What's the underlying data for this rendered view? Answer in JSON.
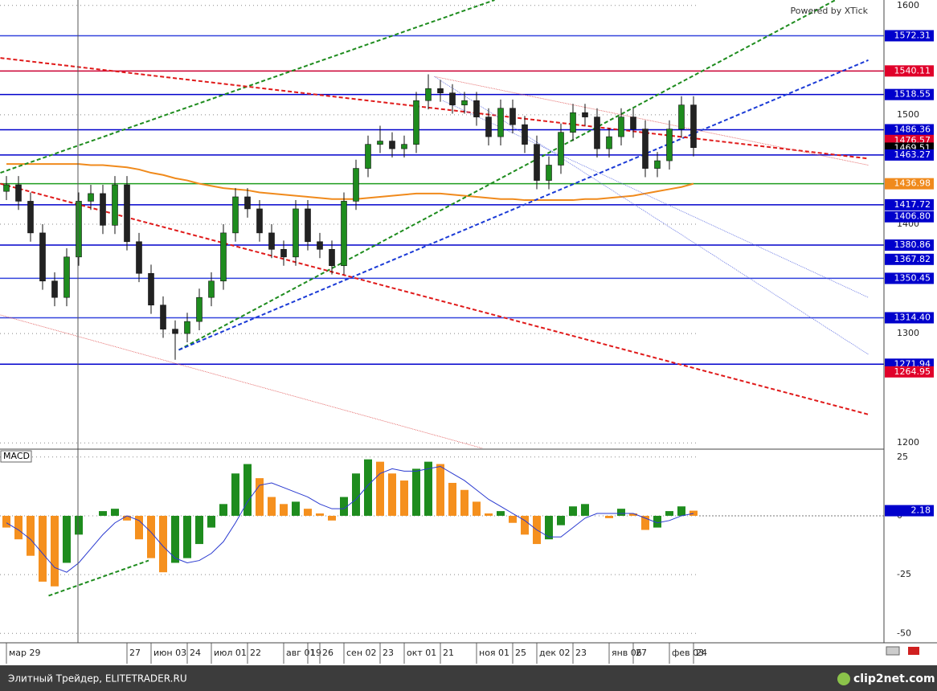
{
  "chart_data": [
    {
      "type": "candlestick",
      "annotation": "Powered by XTick",
      "categories": [
        "мар 29",
        null,
        null,
        null,
        null,
        null,
        null,
        null,
        null,
        null,
        "27",
        null,
        "июн 03",
        null,
        null,
        "24",
        null,
        "июл 01",
        null,
        null,
        "22",
        null,
        null,
        "авг 01",
        null,
        "19",
        "26",
        null,
        "сен 02",
        null,
        null,
        "23",
        null,
        "окт 01",
        null,
        null,
        "21",
        null,
        null,
        "ноя 01",
        null,
        null,
        "25",
        null,
        "дек 02",
        null,
        null,
        "23",
        null,
        null,
        "янв 06",
        null,
        "27",
        null,
        null,
        "фев 03",
        null,
        "24"
      ],
      "open": [
        1430,
        1436,
        1421,
        1392,
        1348,
        1333,
        1370,
        1421,
        1428,
        1399,
        1436,
        1384,
        1355,
        1326,
        1304,
        1300,
        1311,
        1333,
        1348,
        1392,
        1425,
        1414,
        1392,
        1377,
        1370,
        1414,
        1384,
        1377,
        1362,
        1421,
        1451,
        1473,
        1476,
        1469,
        1473,
        1513,
        1524,
        1520,
        1509,
        1513,
        1498,
        1480,
        1506,
        1491,
        1473,
        1440,
        1454,
        1484,
        1502,
        1498,
        1469,
        1480,
        1498,
        1487,
        1451,
        1458,
        1487,
        1509
      ],
      "high": [
        1444,
        1444,
        1429,
        1400,
        1356,
        1378,
        1429,
        1436,
        1436,
        1444,
        1444,
        1392,
        1363,
        1334,
        1312,
        1319,
        1341,
        1356,
        1400,
        1433,
        1433,
        1422,
        1400,
        1385,
        1422,
        1422,
        1392,
        1385,
        1429,
        1459,
        1481,
        1490,
        1484,
        1481,
        1521,
        1537,
        1532,
        1528,
        1521,
        1521,
        1506,
        1514,
        1514,
        1499,
        1481,
        1462,
        1492,
        1510,
        1510,
        1506,
        1488,
        1506,
        1506,
        1495,
        1466,
        1495,
        1517,
        1517
      ],
      "low": [
        1422,
        1413,
        1384,
        1340,
        1325,
        1325,
        1362,
        1413,
        1391,
        1391,
        1376,
        1347,
        1318,
        1296,
        1276,
        1292,
        1303,
        1325,
        1340,
        1384,
        1406,
        1384,
        1369,
        1362,
        1362,
        1376,
        1369,
        1354,
        1354,
        1413,
        1443,
        1465,
        1461,
        1461,
        1465,
        1505,
        1512,
        1501,
        1501,
        1490,
        1472,
        1472,
        1483,
        1465,
        1432,
        1432,
        1446,
        1476,
        1490,
        1461,
        1461,
        1472,
        1479,
        1443,
        1443,
        1450,
        1479,
        1462
      ],
      "close": [
        1436,
        1421,
        1392,
        1348,
        1333,
        1370,
        1421,
        1428,
        1399,
        1436,
        1384,
        1355,
        1326,
        1304,
        1300,
        1311,
        1333,
        1348,
        1392,
        1425,
        1414,
        1392,
        1377,
        1370,
        1414,
        1384,
        1377,
        1362,
        1421,
        1451,
        1473,
        1476,
        1469,
        1473,
        1513,
        1524,
        1520,
        1509,
        1513,
        1498,
        1480,
        1506,
        1491,
        1473,
        1440,
        1454,
        1484,
        1502,
        1498,
        1469,
        1480,
        1498,
        1487,
        1451,
        1458,
        1487,
        1509,
        1470
      ],
      "up_color": "#1e8c1e",
      "down_color": "#222222",
      "moving_average": {
        "color": "#f08a1c",
        "values": [
          1455,
          1455,
          1455,
          1455,
          1455,
          1455,
          1455,
          1454,
          1454,
          1453,
          1452,
          1450,
          1447,
          1445,
          1442,
          1440,
          1437,
          1435,
          1433,
          1432,
          1431,
          1429,
          1428,
          1427,
          1426,
          1425,
          1424,
          1423,
          1423,
          1423,
          1424,
          1425,
          1426,
          1427,
          1428,
          1428,
          1428,
          1427,
          1426,
          1425,
          1424,
          1423,
          1423,
          1422,
          1422,
          1422,
          1422,
          1422,
          1423,
          1423,
          1424,
          1425,
          1426,
          1428,
          1430,
          1432,
          1434,
          1437
        ]
      },
      "levels": [
        {
          "value": 1572.31,
          "label": "1572.31",
          "color": "#0000cc",
          "line_color": "#3344dd"
        },
        {
          "value": 1540.11,
          "label": "1540.11",
          "color": "#e0002a",
          "line_color": "#cc0033"
        },
        {
          "value": 1518.55,
          "label": "1518.55",
          "color": "#0000cc",
          "line_color": "#0000cc"
        },
        {
          "value": 1486.36,
          "label": "1486.36",
          "color": "#0000cc",
          "line_color": "#0000cc"
        },
        {
          "value": 1476.57,
          "label": "1476.57",
          "color": "#e0002a"
        },
        {
          "value": 1469.51,
          "label": "1469.51",
          "color": "#000000"
        },
        {
          "value": 1463.27,
          "label": "1463.27",
          "color": "#0000cc",
          "line_color": "#0000cc"
        },
        {
          "value": 1436.98,
          "label": "1436.98",
          "color": "#f08a1c",
          "line_color": "#1e9c1e"
        },
        {
          "value": 1417.72,
          "label": "1417.72",
          "color": "#0000cc",
          "line_color": "#0000cc"
        },
        {
          "value": 1406.8,
          "label": "1406.80",
          "color": "#0000cc"
        },
        {
          "value": 1380.86,
          "label": "1380.86",
          "color": "#0000cc",
          "line_color": "#0000cc"
        },
        {
          "value": 1367.82,
          "label": "1367.82",
          "color": "#0000cc"
        },
        {
          "value": 1350.45,
          "label": "1350.45",
          "color": "#0000cc",
          "line_color": "#3344dd"
        },
        {
          "value": 1314.4,
          "label": "1314.40",
          "color": "#0000cc",
          "line_color": "#3344dd"
        },
        {
          "value": 1271.94,
          "label": "1271.94",
          "color": "#0000cc",
          "line_color": "#0000cc"
        },
        {
          "value": 1264.95,
          "label": "1264.95",
          "color": "#e0002a"
        }
      ],
      "trendlines": [
        {
          "from": [
            -0.5,
            1447
          ],
          "to": [
            40.5,
            1605
          ],
          "color": "#1e8c1e",
          "dash": true
        },
        {
          "from": [
            14.3,
            1285
          ],
          "to": [
            71.5,
            1621
          ],
          "color": "#1e8c1e",
          "dash": true
        },
        {
          "from": [
            14.3,
            1285
          ],
          "to": [
            71.5,
            1550
          ],
          "color": "#1a3ad6",
          "dash": true
        },
        {
          "from": [
            -0.5,
            1552
          ],
          "to": [
            71.5,
            1460
          ],
          "color": "#e01a1a",
          "dash": true
        },
        {
          "from": [
            -0.5,
            1437
          ],
          "to": [
            71.5,
            1226
          ],
          "color": "#e01a1a",
          "dash": true
        },
        {
          "from": [
            35.5,
            1535
          ],
          "to": [
            71.5,
            1454
          ],
          "color": "#e05050",
          "dash": false
        },
        {
          "from": [
            -0.5,
            1317
          ],
          "to": [
            39.5,
            1195
          ],
          "color": "#e05050",
          "dash": false
        },
        {
          "from": [
            35.5,
            1535
          ],
          "to": [
            71.5,
            1281
          ],
          "color": "#5a6ae0",
          "dash": false
        },
        {
          "from": [
            36.2,
            1513
          ],
          "to": [
            71.5,
            1333
          ],
          "color": "#5a6ae0",
          "dash": false
        }
      ],
      "ylim": [
        1195,
        1605
      ],
      "yticks": [
        1200,
        1300,
        1400,
        1500,
        1600
      ],
      "grid": true
    },
    {
      "type": "bar",
      "title": "MACD",
      "values": [
        -5,
        -10,
        -17,
        -28,
        -30,
        -20,
        -8,
        0,
        2,
        3,
        -2,
        -10,
        -18,
        -24,
        -20,
        -18,
        -12,
        -5,
        5,
        18,
        22,
        16,
        8,
        5,
        6,
        3,
        1,
        -2,
        8,
        18,
        24,
        23,
        18,
        15,
        20,
        23,
        22,
        14,
        11,
        6,
        1,
        2,
        -3,
        -8,
        -12,
        -10,
        -4,
        4,
        5,
        0,
        -1,
        3,
        1,
        -6,
        -5,
        2,
        4,
        2.18
      ],
      "up_color": "#1e8c1e",
      "down_color": "#f5901e",
      "signal": {
        "color": "#2a3ad0",
        "values": [
          -3,
          -6,
          -10,
          -16,
          -22,
          -24,
          -20,
          -14,
          -8,
          -3,
          0,
          -2,
          -7,
          -13,
          -18,
          -20,
          -19,
          -16,
          -11,
          -3,
          6,
          13,
          14,
          12,
          10,
          8,
          5,
          3,
          3,
          7,
          13,
          18,
          20,
          19,
          19,
          20,
          21,
          18,
          15,
          11,
          7,
          4,
          1,
          -2,
          -6,
          -9,
          -9,
          -5,
          -1,
          1,
          1,
          1,
          1,
          -1,
          -3,
          -2,
          0,
          1
        ]
      },
      "current": 2.18,
      "current_color": "#0000cc",
      "trendlines": [
        {
          "from": [
            3.5,
            -34
          ],
          "to": [
            11.8,
            -19
          ],
          "color": "#1e8c1e",
          "dash": true
        }
      ],
      "ylim": [
        -54,
        28
      ],
      "yticks": [
        25,
        0,
        -25,
        -50
      ],
      "grid": true
    }
  ],
  "footer": {
    "source": "Элитный Трейдер, ELITETRADER.RU",
    "logo": "clip2net.com"
  }
}
